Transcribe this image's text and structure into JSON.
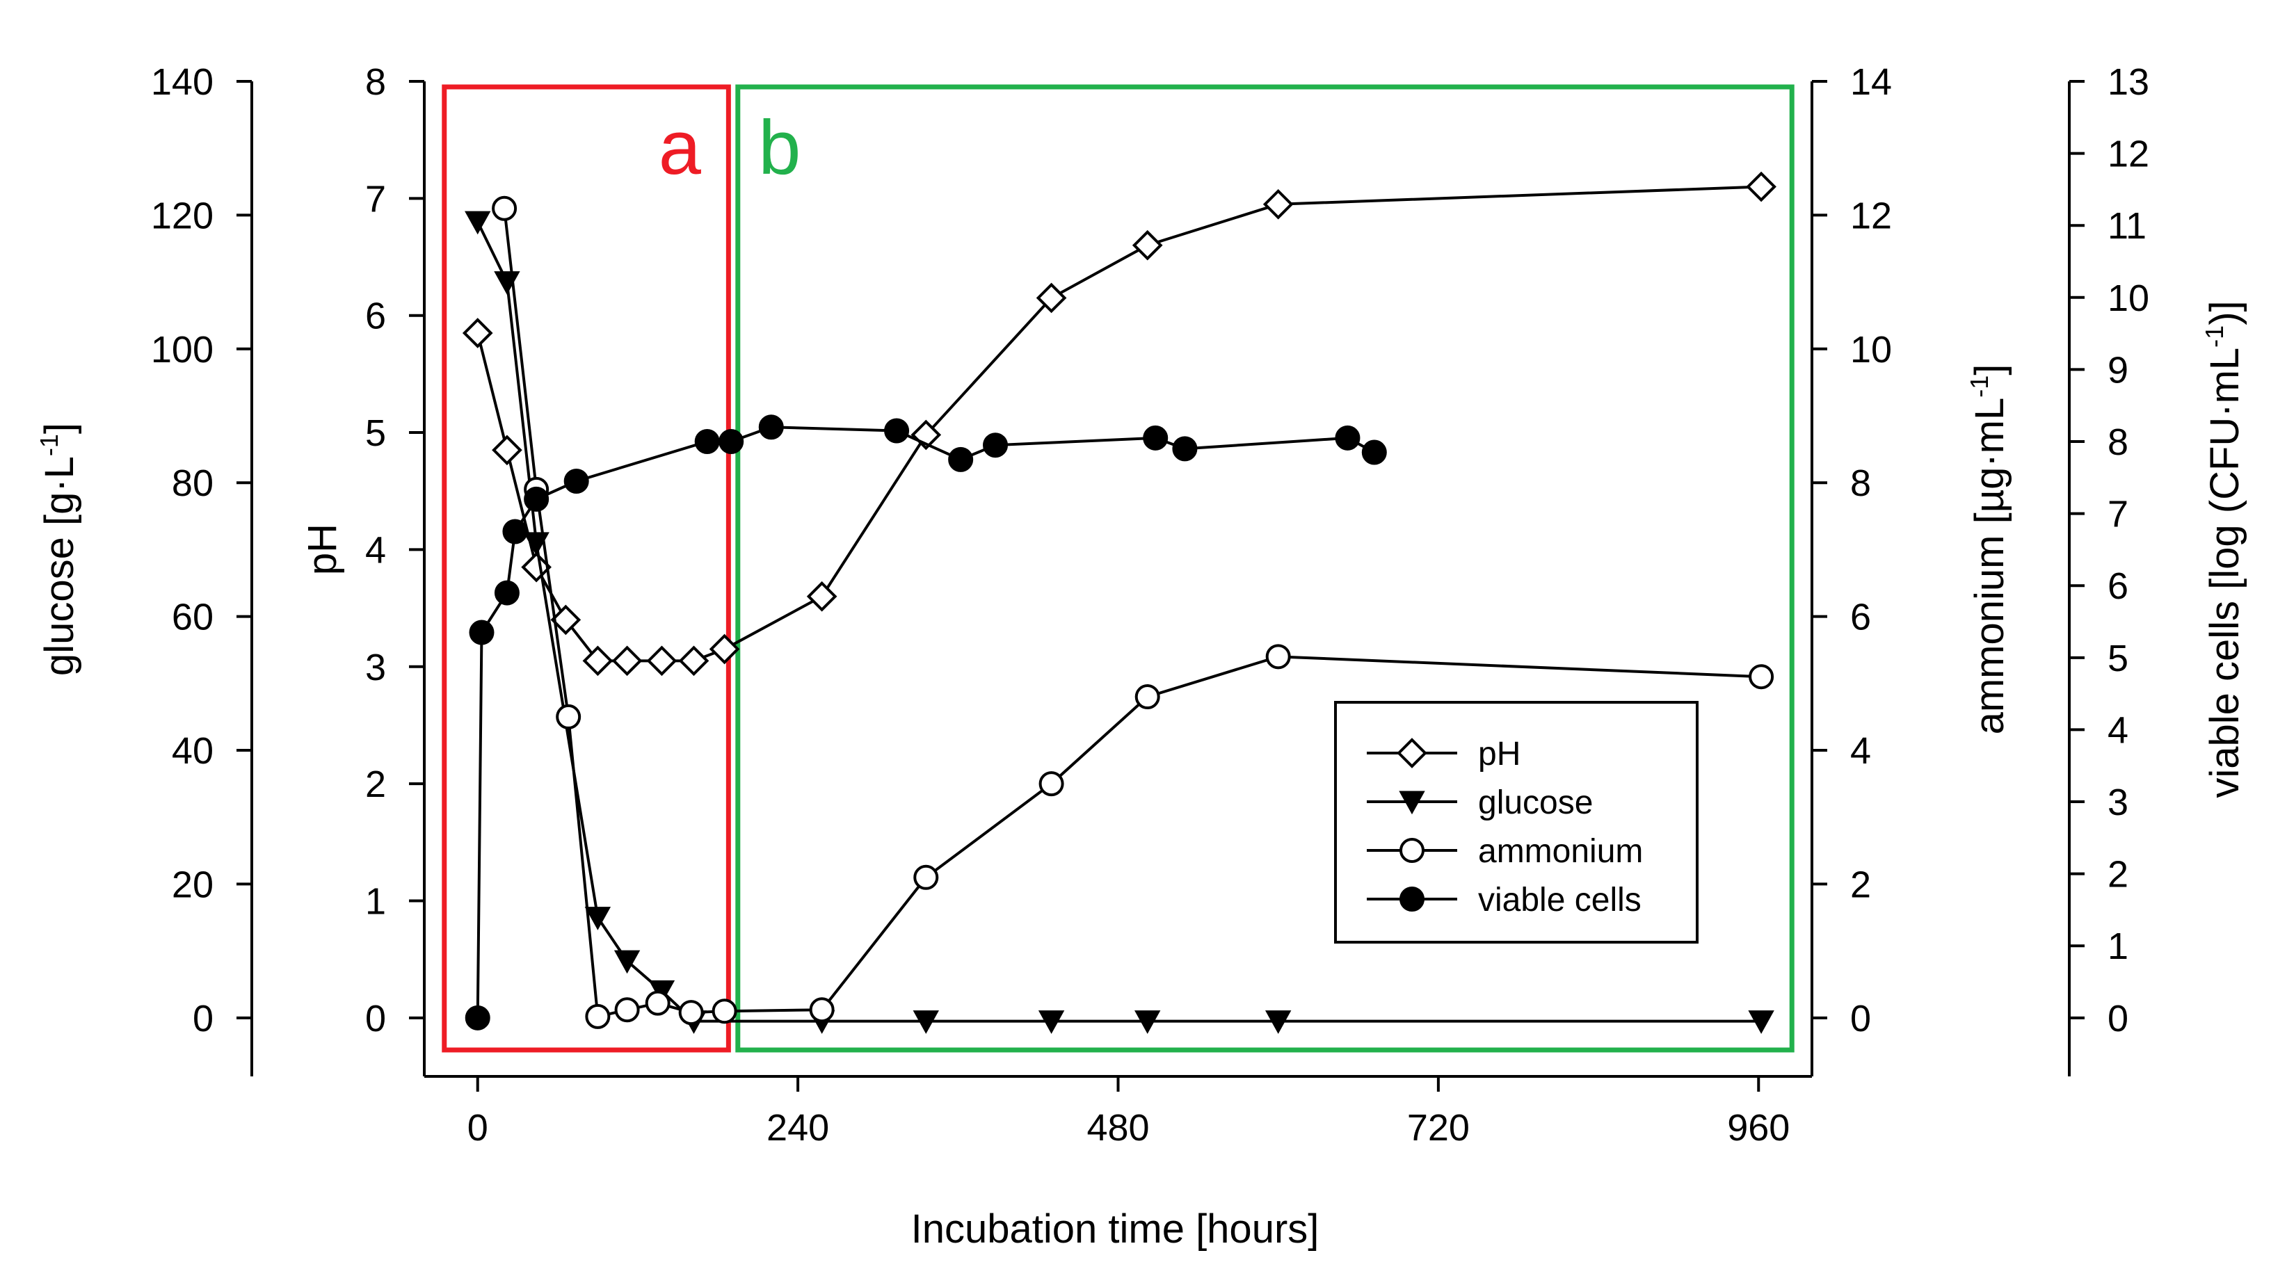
{
  "chart_data": {
    "type": "line",
    "xlabel": "Incubation time [hours]",
    "x_ticks": [
      0,
      240,
      480,
      720,
      960
    ],
    "xlim": [
      -40,
      1000
    ],
    "axes": {
      "ph": {
        "label": "pH",
        "ylim": [
          -0.5,
          8
        ],
        "ticks": [
          0,
          1,
          2,
          3,
          4,
          5,
          6,
          7,
          8
        ]
      },
      "glucose": {
        "label": "glucose [g·L",
        "label_sup": "-1",
        "label_tail": "]",
        "ylim": [
          -8.75,
          140
        ],
        "ticks": [
          0,
          20,
          40,
          60,
          80,
          100,
          120,
          140
        ]
      },
      "ammonium": {
        "label": "ammonium [µg·mL",
        "label_sup": "-1",
        "label_tail": "]",
        "ylim": [
          -0.875,
          14
        ],
        "ticks": [
          0,
          2,
          4,
          6,
          8,
          10,
          12,
          14
        ]
      },
      "viable": {
        "label": "viable cells [log (CFU·mL",
        "label_sup": "-1",
        "label_tail": ")]",
        "ylim": [
          -0.8125,
          13
        ],
        "ticks": [
          0,
          1,
          2,
          3,
          4,
          5,
          6,
          7,
          8,
          9,
          10,
          11,
          12,
          13
        ]
      }
    },
    "series": [
      {
        "name": "pH",
        "axis": "ph",
        "marker": "diamond-open",
        "points": [
          [
            0,
            5.85
          ],
          [
            22,
            4.85
          ],
          [
            44,
            3.85
          ],
          [
            66,
            3.4
          ],
          [
            90,
            3.05
          ],
          [
            112,
            3.05
          ],
          [
            138,
            3.05
          ],
          [
            162,
            3.05
          ],
          [
            185,
            3.15
          ],
          [
            258,
            3.6
          ],
          [
            336,
            4.98
          ],
          [
            430,
            6.15
          ],
          [
            502,
            6.6
          ],
          [
            600,
            6.95
          ],
          [
            962,
            7.1
          ]
        ]
      },
      {
        "name": "glucose",
        "axis": "glucose",
        "marker": "triangle-down-filled",
        "points": [
          [
            0,
            119
          ],
          [
            22,
            110
          ],
          [
            44,
            71
          ],
          [
            90,
            15
          ],
          [
            112,
            8.5
          ],
          [
            138,
            4
          ],
          [
            162,
            -0.5
          ],
          [
            258,
            -0.5
          ],
          [
            336,
            -0.5
          ],
          [
            430,
            -0.5
          ],
          [
            502,
            -0.5
          ],
          [
            600,
            -0.5
          ],
          [
            962,
            -0.5
          ]
        ]
      },
      {
        "name": "ammonium",
        "axis": "ammonium",
        "marker": "circle-open",
        "points": [
          [
            20,
            12.1
          ],
          [
            44,
            7.9
          ],
          [
            68,
            4.5
          ],
          [
            90,
            0.02
          ],
          [
            112,
            0.12
          ],
          [
            135,
            0.22
          ],
          [
            160,
            0.08
          ],
          [
            185,
            0.1
          ],
          [
            258,
            0.12
          ],
          [
            336,
            2.1
          ],
          [
            430,
            3.5
          ],
          [
            502,
            4.8
          ],
          [
            600,
            5.4
          ],
          [
            962,
            5.1
          ]
        ]
      },
      {
        "name": "viable cells",
        "axis": "viable",
        "marker": "circle-filled",
        "points": [
          [
            0,
            0
          ],
          [
            3,
            5.35
          ],
          [
            22,
            5.9
          ],
          [
            28,
            6.75
          ],
          [
            44,
            7.2
          ],
          [
            74,
            7.45
          ],
          [
            172,
            8
          ],
          [
            190,
            8
          ],
          [
            220,
            8.2
          ],
          [
            314,
            8.15
          ],
          [
            362,
            7.75
          ],
          [
            388,
            7.95
          ],
          [
            508,
            8.05
          ],
          [
            530,
            7.9
          ],
          [
            652,
            8.05
          ],
          [
            672,
            7.85
          ]
        ]
      }
    ],
    "legend": {
      "position": "lower-right",
      "entries": [
        "pH",
        "glucose",
        "ammonium",
        "viable cells"
      ]
    },
    "regions": [
      {
        "label": "a",
        "color": "#ee1c25",
        "x_start": -25,
        "x_end": 188
      },
      {
        "label": "b",
        "color": "#22b14c",
        "x_start": 195,
        "x_end": 985
      }
    ]
  }
}
